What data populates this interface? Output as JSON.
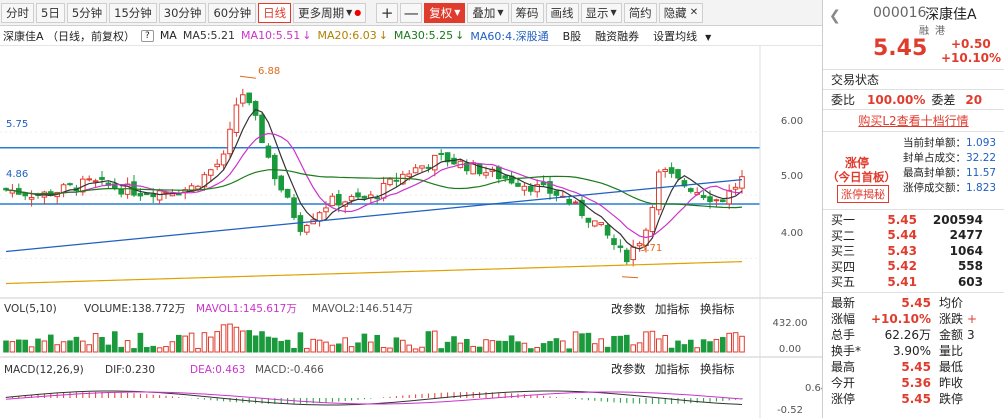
{
  "toolbar": {
    "items": [
      "分时",
      "5日",
      "5分钟",
      "15分钟",
      "30分钟",
      "60分钟",
      "日线",
      "更多周期"
    ],
    "plus": "+",
    "minus": "—",
    "fuquan": "复权",
    "overlay": "叠加",
    "chips": "筹码",
    "draw": "画线",
    "display": "显示",
    "simple": "简约",
    "hide": "隐藏"
  },
  "info": {
    "name": "深康佳A （日线，前复权）",
    "help": "?",
    "ma_label": "MA",
    "ma5": "MA5:5.21",
    "ma10": "MA10:5.51",
    "ma20": "MA20:6.03",
    "ma30": "MA30:5.25",
    "ma60": "MA60:4.深股通",
    "bshares": "B股",
    "margin": "融资融券",
    "set_ma": "设置均线"
  },
  "panels": {
    "vol_label": "VOL(5,10)",
    "volume": "VOLUME:138.772万",
    "mavol1": "MAVOL1:145.617万",
    "mavol2": "MAVOL2:146.514万",
    "macd_label": "MACD(12,26,9)",
    "dif": "DIF:0.230",
    "dea": "DEA:0.463",
    "macd": "MACD:-0.466",
    "edit_param": "改参数",
    "add_ind": "加指标",
    "swap_ind": "换指标"
  },
  "axis": {
    "price_ticks": [
      "6.00",
      "5.00",
      "4.00"
    ],
    "vol_ticks": [
      "432.00",
      "0.00"
    ],
    "macd_ticks": [
      "0.64",
      "-0.52"
    ],
    "high_mark": "6.88",
    "low_mark": "3.71",
    "hline_upper": "5.75",
    "hline_lower": "4.86"
  },
  "chart_data": {
    "type": "candlestick",
    "price_range": [
      3.5,
      7.2
    ],
    "hlines": [
      5.75,
      4.86
    ],
    "high": 6.88,
    "low": 3.71,
    "ma_colors": {
      "ma5": "#333333",
      "ma10": "#cc33cc",
      "ma20": "#e0a000",
      "ma30": "#1a7a1a",
      "ma60": "#2060c0"
    },
    "up_color": "#e03c2e",
    "down_color": "#1a9a3c"
  },
  "quote": {
    "code": "000016",
    "name": "深康佳A",
    "tags": [
      "融",
      "港"
    ],
    "price": "5.45",
    "change": "+0.50",
    "pct": "+10.10%",
    "status_title": "交易状态",
    "ratio_label": "委比",
    "ratio_value": "100.00%",
    "diff_label": "委差",
    "diff_value": "20",
    "l2_link": "购买L2查看十档行情",
    "limit_title": "涨停",
    "limit_sub": "（今日首板）",
    "limit_btn": "涨停揭秘",
    "seal_rows": [
      {
        "label": "当前封单额：",
        "value": "1.093"
      },
      {
        "label": "封单占成交：",
        "value": "32.22"
      },
      {
        "label": "最高封单额：",
        "value": "11.57"
      },
      {
        "label": "涨停成交额：",
        "value": "1.823"
      }
    ],
    "bids": [
      {
        "label": "买一",
        "price": "5.45",
        "vol": "200594"
      },
      {
        "label": "买二",
        "price": "5.44",
        "vol": "2477"
      },
      {
        "label": "买三",
        "price": "5.43",
        "vol": "1064"
      },
      {
        "label": "买四",
        "price": "5.42",
        "vol": "558"
      },
      {
        "label": "买五",
        "price": "5.41",
        "vol": "603"
      }
    ],
    "stats": [
      {
        "l1": "最新",
        "v1": "5.45",
        "l2": "均价",
        "v2": ""
      },
      {
        "l1": "涨幅",
        "v1": "+10.10%",
        "l2": "涨跌",
        "v2": "+"
      },
      {
        "l1": "总手",
        "v1": "62.26万",
        "l2": "金额",
        "v2": "3"
      },
      {
        "l1": "换手*",
        "v1": "3.90%",
        "l2": "量比",
        "v2": ""
      },
      {
        "l1": "最高",
        "v1": "5.45",
        "l2": "最低",
        "v2": ""
      },
      {
        "l1": "今开",
        "v1": "5.36",
        "l2": "昨收",
        "v2": ""
      },
      {
        "l1": "涨停",
        "v1": "5.45",
        "l2": "跌停",
        "v2": ""
      }
    ]
  }
}
